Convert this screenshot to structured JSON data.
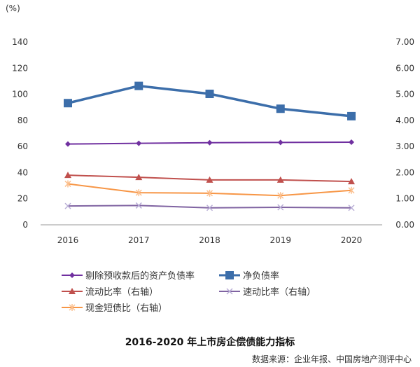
{
  "chart_data": {
    "type": "line",
    "title": "2016-2020 年上市房企偿债能力指标",
    "source": "数据来源：企业年报、中国房地产测评中心",
    "y_unit_label": "(%)",
    "categories": [
      "2016",
      "2017",
      "2018",
      "2019",
      "2020"
    ],
    "y_left": {
      "range": [
        0,
        140
      ],
      "ticks": [
        "0",
        "20",
        "40",
        "60",
        "80",
        "100",
        "120",
        "140"
      ]
    },
    "y_right": {
      "range": [
        0,
        7
      ],
      "ticks": [
        "0.00",
        "1.00",
        "2.00",
        "3.00",
        "4.00",
        "5.00",
        "6.00",
        "7.00"
      ]
    },
    "grid": false,
    "legend_position": "bottom",
    "series": [
      {
        "name": "剔除预收款后的资产负债率",
        "axis": "left",
        "color": "#7030A0",
        "marker": "diamond",
        "values": [
          61.9,
          62.4,
          62.9,
          63.1,
          63.3
        ]
      },
      {
        "name": "净负债率",
        "axis": "left",
        "color": "#3C6EAA",
        "marker": "square",
        "values": [
          93.2,
          106.4,
          100.3,
          88.9,
          83.2
        ]
      },
      {
        "name": "流动比率（右轴）",
        "axis": "right",
        "color": "#C0504D",
        "marker": "triangle",
        "values": [
          1.9,
          1.82,
          1.72,
          1.72,
          1.66
        ]
      },
      {
        "name": "速动比率（右轴）",
        "axis": "right",
        "color": "#8064A2",
        "marker": "x",
        "values": [
          0.72,
          0.74,
          0.65,
          0.67,
          0.65
        ]
      },
      {
        "name": "现金短债比（右轴）",
        "axis": "right",
        "color": "#F79646",
        "marker": "star",
        "values": [
          1.57,
          1.23,
          1.21,
          1.12,
          1.32
        ]
      }
    ]
  }
}
